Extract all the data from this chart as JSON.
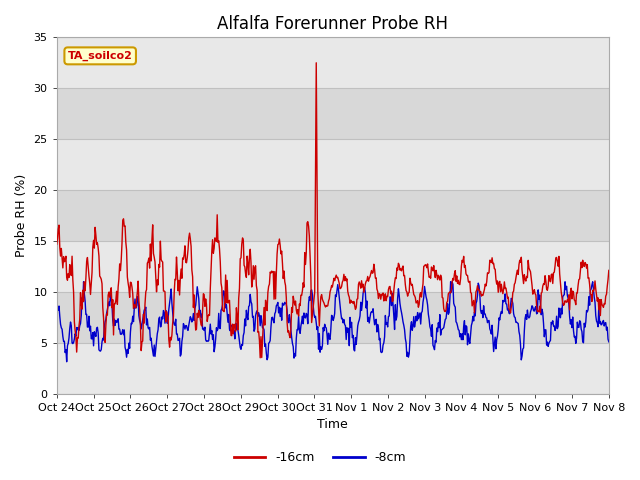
{
  "title": "Alfalfa Forerunner Probe RH",
  "ylabel": "Probe RH (%)",
  "xlabel": "Time",
  "annotation": "TA_soilco2",
  "ylim": [
    0,
    35
  ],
  "xlim": [
    0,
    15
  ],
  "xtick_labels": [
    "Oct 24",
    "Oct 25",
    "Oct 26",
    "Oct 27",
    "Oct 28",
    "Oct 29",
    "Oct 30",
    "Oct 31",
    "Nov 1",
    "Nov 2",
    "Nov 3",
    "Nov 4",
    "Nov 5",
    "Nov 6",
    "Nov 7",
    "Nov 8"
  ],
  "ytick_labels": [
    "0",
    "5",
    "10",
    "15",
    "20",
    "25",
    "30",
    "35"
  ],
  "ytick_values": [
    0,
    5,
    10,
    15,
    20,
    25,
    30,
    35
  ],
  "bg_color": "#ffffff",
  "plot_bg_light": "#e8e8e8",
  "plot_bg_dark": "#d0d0d0",
  "grid_color": "#c8c8c8",
  "line1_color": "#cc0000",
  "line2_color": "#0000cc",
  "line1_label": "-16cm",
  "line2_label": "-8cm",
  "title_fontsize": 12,
  "axis_fontsize": 9,
  "tick_fontsize": 8,
  "band_colors": [
    "#e8e8e8",
    "#d8d8d8"
  ]
}
